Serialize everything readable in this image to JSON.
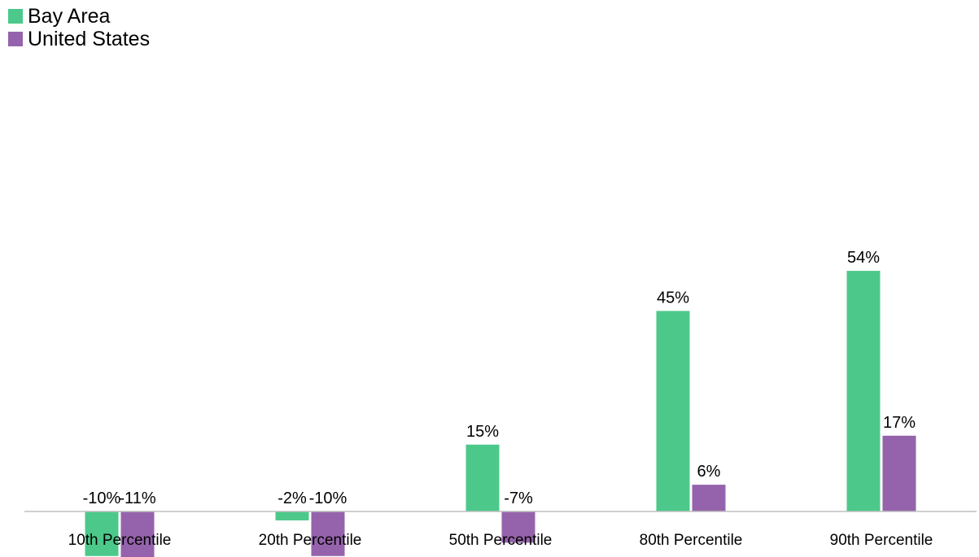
{
  "chart_data": {
    "type": "bar",
    "categories": [
      "10th Percentile",
      "20th Percentile",
      "50th Percentile",
      "80th Percentile",
      "90th Percentile"
    ],
    "series": [
      {
        "name": "Bay Area",
        "color": "#4cc98a",
        "values": [
          -10,
          -2,
          15,
          45,
          54
        ],
        "labels": [
          "-10%",
          "-2%",
          "15%",
          "45%",
          "54%"
        ]
      },
      {
        "name": "United States",
        "color": "#9563ab",
        "values": [
          -11,
          -10,
          -7,
          6,
          17
        ],
        "labels": [
          "-11%",
          "-10%",
          "-7%",
          "6%",
          "17%"
        ]
      }
    ],
    "legend_position": "top-left",
    "grid": false,
    "axis_color": "#bfbfbf"
  }
}
